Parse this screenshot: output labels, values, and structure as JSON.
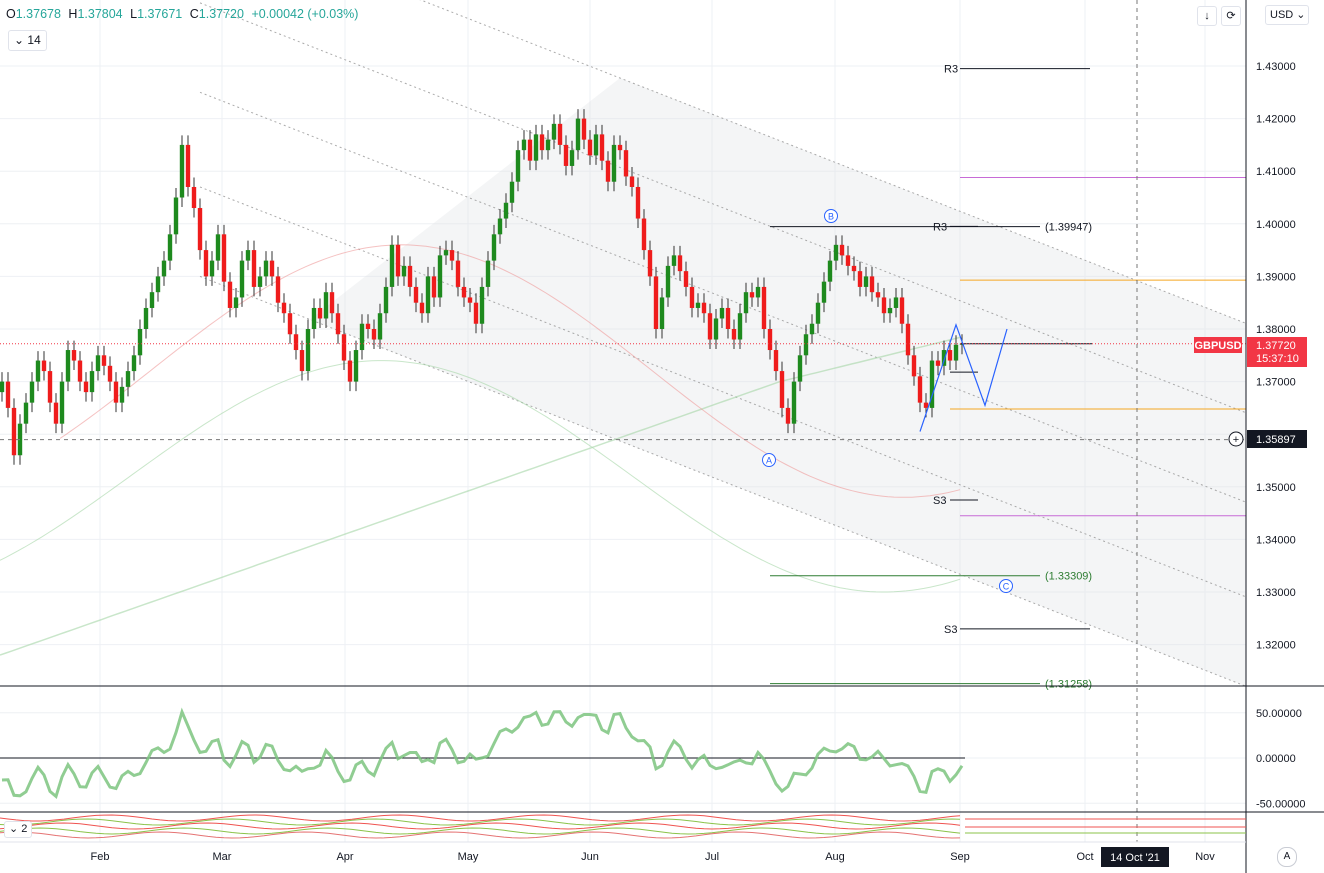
{
  "header": {
    "open_label": "O",
    "open": "1.37678",
    "high_label": "H",
    "high": "1.37804",
    "low_label": "L",
    "low": "1.37671",
    "close_label": "C",
    "close": "1.37720",
    "change": "+0.00042 (+0.03%)",
    "indicator_button": "14",
    "indicator_button_2": "2"
  },
  "toolbar": {
    "currency": "USD",
    "auto_label": "A"
  },
  "colors": {
    "up": "#26a69a",
    "up_candle": "#1e8a1e",
    "down_candle": "#ef1c1c",
    "price_tag": "#f23645",
    "crosshair_tag": "#131722"
  },
  "chart_data": [
    {
      "type": "candlestick",
      "symbol": "GBPUSD",
      "timeframe": "1D",
      "xlabels": [
        "Feb",
        "Mar",
        "Apr",
        "May",
        "Jun",
        "Jul",
        "Aug",
        "Sep",
        "Oct",
        "Nov"
      ],
      "x_crosshair_label": "14 Oct '21",
      "y_ticks": [
        "1.43000",
        "1.42000",
        "1.41000",
        "1.40000",
        "1.39000",
        "1.38000",
        "1.37000",
        "1.36000",
        "1.35000",
        "1.34000",
        "1.33000",
        "1.32000"
      ],
      "ylim": [
        1.3125,
        1.4435
      ],
      "last_price": "1.37720",
      "countdown": "15:37:10",
      "crosshair_price": "1.35897",
      "pivot_labels": [
        {
          "text": "R3",
          "price": 1.4295
        },
        {
          "text": "R3",
          "price": 1.3995
        },
        {
          "text": "S3",
          "price": 1.3475
        },
        {
          "text": "S3",
          "price": 1.323
        }
      ],
      "fib_labels": [
        {
          "text": "(1.39947)",
          "price": 1.39947
        },
        {
          "text": "(1.33309)",
          "price": 1.33309
        },
        {
          "text": "(1.31258)",
          "price": 1.31258
        }
      ],
      "wave_labels": [
        "A",
        "B",
        "C"
      ],
      "closes": [
        1.37,
        1.365,
        1.356,
        1.362,
        1.366,
        1.37,
        1.374,
        1.372,
        1.366,
        1.362,
        1.37,
        1.376,
        1.374,
        1.37,
        1.368,
        1.372,
        1.375,
        1.373,
        1.37,
        1.366,
        1.369,
        1.372,
        1.375,
        1.38,
        1.384,
        1.387,
        1.39,
        1.393,
        1.398,
        1.405,
        1.415,
        1.407,
        1.403,
        1.395,
        1.39,
        1.393,
        1.398,
        1.389,
        1.384,
        1.386,
        1.393,
        1.395,
        1.388,
        1.39,
        1.393,
        1.39,
        1.385,
        1.383,
        1.379,
        1.376,
        1.372,
        1.38,
        1.384,
        1.382,
        1.387,
        1.383,
        1.379,
        1.374,
        1.37,
        1.376,
        1.381,
        1.38,
        1.378,
        1.383,
        1.388,
        1.396,
        1.39,
        1.392,
        1.388,
        1.385,
        1.383,
        1.39,
        1.386,
        1.394,
        1.395,
        1.393,
        1.388,
        1.386,
        1.385,
        1.381,
        1.388,
        1.393,
        1.398,
        1.401,
        1.404,
        1.408,
        1.414,
        1.416,
        1.412,
        1.417,
        1.414,
        1.416,
        1.419,
        1.415,
        1.411,
        1.414,
        1.42,
        1.416,
        1.413,
        1.417,
        1.412,
        1.408,
        1.415,
        1.414,
        1.409,
        1.407,
        1.401,
        1.395,
        1.39,
        1.38,
        1.386,
        1.392,
        1.394,
        1.391,
        1.388,
        1.384,
        1.385,
        1.383,
        1.378,
        1.382,
        1.384,
        1.38,
        1.378,
        1.383,
        1.387,
        1.386,
        1.388,
        1.38,
        1.376,
        1.372,
        1.365,
        1.362,
        1.37,
        1.375,
        1.379,
        1.381,
        1.385,
        1.389,
        1.393,
        1.396,
        1.394,
        1.392,
        1.391,
        1.388,
        1.39,
        1.387,
        1.386,
        1.383,
        1.384,
        1.386,
        1.381,
        1.375,
        1.371,
        1.366,
        1.365,
        1.374,
        1.373,
        1.376,
        1.374,
        1.377,
        1.3772
      ]
    },
    {
      "type": "line",
      "name": "oscillator",
      "y_ticks": [
        "50.00000",
        "0.00000",
        "-50.00000"
      ],
      "ylim": [
        -70,
        80
      ]
    }
  ]
}
